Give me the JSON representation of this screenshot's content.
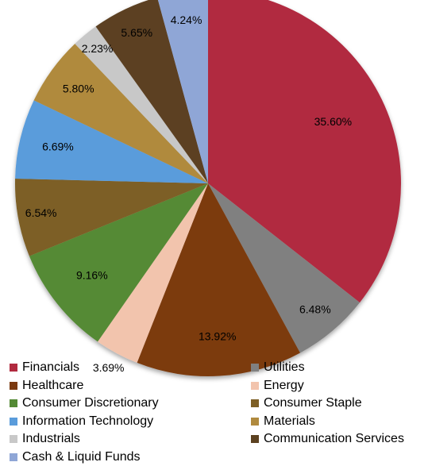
{
  "chart_data": {
    "type": "pie",
    "title": "",
    "slices": [
      {
        "name": "Financials",
        "value": 35.6,
        "label": "35.60%",
        "color": "#b12a3f"
      },
      {
        "name": "Utilities",
        "value": 6.48,
        "label": "6.48%",
        "color": "#808080"
      },
      {
        "name": "Healthcare",
        "value": 13.92,
        "label": "13.92%",
        "color": "#7b3a10"
      },
      {
        "name": "Energy",
        "value": 3.69,
        "label": "3.69%",
        "color": "#f2c4ad"
      },
      {
        "name": "Consumer Discretionary",
        "value": 9.16,
        "label": "9.16%",
        "color": "#548a35"
      },
      {
        "name": "Consumer Staple",
        "value": 6.54,
        "label": "6.54%",
        "color": "#7d5f25"
      },
      {
        "name": "Information Technology",
        "value": 6.69,
        "label": "6.69%",
        "color": "#5a9cdb"
      },
      {
        "name": "Materials",
        "value": 5.8,
        "label": "5.80%",
        "color": "#b08a3e"
      },
      {
        "name": "Industrials",
        "value": 2.23,
        "label": "2.23%",
        "color": "#c8c8c8"
      },
      {
        "name": "Communication Services",
        "value": 5.65,
        "label": "5.65%",
        "color": "#5c4120"
      },
      {
        "name": "Cash & Liquid Funds",
        "value": 4.24,
        "label": "4.24%",
        "color": "#8fa6d6"
      }
    ],
    "legend_order": [
      "Financials",
      "Utilities",
      "Healthcare",
      "Energy",
      "Consumer Discretionary",
      "Consumer Staple",
      "Information Technology",
      "Materials",
      "Industrials",
      "Communication Services",
      "Cash & Liquid Funds"
    ],
    "legend_position": "bottom",
    "start_angle": "12 o'clock",
    "direction": "clockwise"
  }
}
